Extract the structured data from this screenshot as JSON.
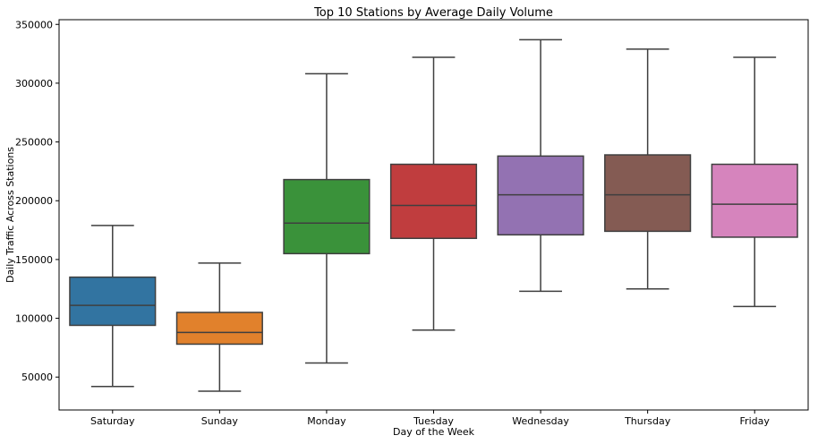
{
  "chart_data": {
    "type": "box",
    "title": "Top 10 Stations by Average Daily Volume",
    "xlabel": "Day of the Week",
    "ylabel": "Daily Traffic Across Stations",
    "ylim": [
      22000,
      354000
    ],
    "yticks": [
      50000,
      100000,
      150000,
      200000,
      250000,
      300000,
      350000
    ],
    "ytick_labels": [
      "50000",
      "100000",
      "150000",
      "200000",
      "250000",
      "300000",
      "350000"
    ],
    "grid": false,
    "categories": [
      "Saturday",
      "Sunday",
      "Monday",
      "Tuesday",
      "Wednesday",
      "Thursday",
      "Friday"
    ],
    "boxes": [
      {
        "category": "Saturday",
        "whisker_low": 42000,
        "q1": 94000,
        "median": 111000,
        "q3": 135000,
        "whisker_high": 179000,
        "color": "#3274a1"
      },
      {
        "category": "Sunday",
        "whisker_low": 38000,
        "q1": 78000,
        "median": 88000,
        "q3": 105000,
        "whisker_high": 147000,
        "color": "#e1812c"
      },
      {
        "category": "Monday",
        "whisker_low": 62000,
        "q1": 155000,
        "median": 181000,
        "q3": 218000,
        "whisker_high": 308000,
        "color": "#3a923a"
      },
      {
        "category": "Tuesday",
        "whisker_low": 90000,
        "q1": 168000,
        "median": 196000,
        "q3": 231000,
        "whisker_high": 322000,
        "color": "#c03d3e"
      },
      {
        "category": "Wednesday",
        "whisker_low": 123000,
        "q1": 171000,
        "median": 205000,
        "q3": 238000,
        "whisker_high": 337000,
        "color": "#9372b2"
      },
      {
        "category": "Thursday",
        "whisker_low": 125000,
        "q1": 174000,
        "median": 205000,
        "q3": 239000,
        "whisker_high": 329000,
        "color": "#845b53"
      },
      {
        "category": "Friday",
        "whisker_low": 110000,
        "q1": 169000,
        "median": 197000,
        "q3": 231000,
        "whisker_high": 322000,
        "color": "#d684bd"
      }
    ]
  }
}
